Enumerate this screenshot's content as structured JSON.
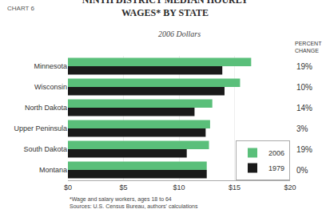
{
  "chart_data": {
    "type": "bar",
    "orientation": "horizontal",
    "title": "NINTH DISTRICT MEDIAN HOURLY\nWAGES* BY STATE",
    "subtitle": "2006 Dollars",
    "categories": [
      "Minnesota",
      "Wisconsin",
      "North Dakota",
      "Upper Peninsula",
      "South Dakota",
      "Montana"
    ],
    "series": [
      {
        "name": "2006",
        "color": "#5abf7a",
        "values": [
          16.5,
          15.5,
          13.0,
          12.8,
          12.7,
          12.5
        ]
      },
      {
        "name": "1979",
        "color": "#1a1a1a",
        "values": [
          13.9,
          14.1,
          11.4,
          12.4,
          10.7,
          12.5
        ]
      }
    ],
    "xlim": [
      0,
      20
    ],
    "xticks": [
      {
        "value": 0,
        "label": "$0"
      },
      {
        "value": 5,
        "label": "$5"
      },
      {
        "value": 10,
        "label": "$10"
      },
      {
        "value": 15,
        "label": "$15"
      },
      {
        "value": 20,
        "label": "$20"
      }
    ],
    "grid": true,
    "legend": "lower right",
    "annotations": [
      {
        "text": "CHART 6"
      },
      {
        "text": "PERCENT\nCHANGE"
      },
      {
        "text": "19%",
        "category": "Minnesota"
      },
      {
        "text": "10%",
        "category": "Wisconsin"
      },
      {
        "text": "14%",
        "category": "North Dakota"
      },
      {
        "text": "3%",
        "category": "Upper Peninsula"
      },
      {
        "text": "19%",
        "category": "South Dakota"
      },
      {
        "text": "0%",
        "category": "Montana"
      },
      {
        "text": "*Wage and salary workers, ages 18 to 64\nSources: U.S. Census Bureau, authors' calculations"
      }
    ]
  }
}
